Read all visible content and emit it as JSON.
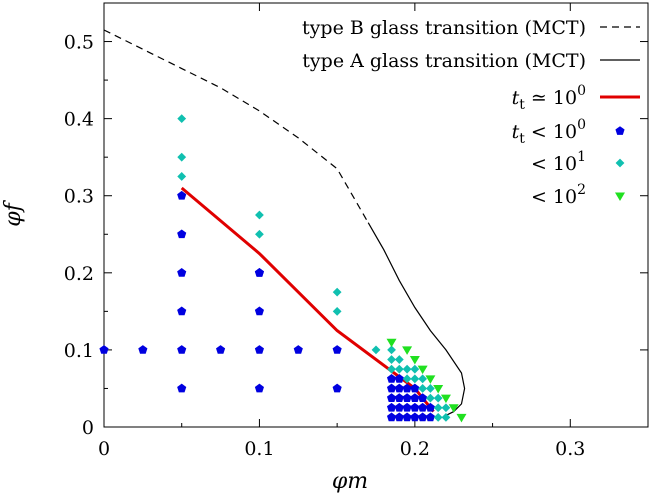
{
  "chart_data": {
    "type": "scatter",
    "xlabel": "φm",
    "ylabel": "φf",
    "xlim": [
      0,
      0.35
    ],
    "ylim": [
      0,
      0.55
    ],
    "x_ticks": [
      {
        "value": 0,
        "label": "0"
      },
      {
        "value": 0.1,
        "label": "0.1"
      },
      {
        "value": 0.2,
        "label": "0.2"
      },
      {
        "value": 0.3,
        "label": "0.3"
      }
    ],
    "y_ticks": [
      {
        "value": 0,
        "label": "0"
      },
      {
        "value": 0.1,
        "label": "0.1"
      },
      {
        "value": 0.2,
        "label": "0.2"
      },
      {
        "value": 0.3,
        "label": "0.3"
      },
      {
        "value": 0.4,
        "label": "0.4"
      },
      {
        "value": 0.5,
        "label": "0.5"
      }
    ],
    "grid": false,
    "legend_position": "top-right",
    "series": [
      {
        "name": "type B glass transition (MCT)",
        "style": "dashed-line",
        "color": "#000000",
        "points": [
          [
            0,
            0.515
          ],
          [
            0.025,
            0.49
          ],
          [
            0.05,
            0.465
          ],
          [
            0.075,
            0.44
          ],
          [
            0.1,
            0.41
          ],
          [
            0.125,
            0.375
          ],
          [
            0.15,
            0.335
          ],
          [
            0.17,
            0.265
          ]
        ]
      },
      {
        "name": "type A glass transition (MCT)",
        "style": "solid-line",
        "color": "#000000",
        "points": [
          [
            0.17,
            0.265
          ],
          [
            0.18,
            0.23
          ],
          [
            0.19,
            0.19
          ],
          [
            0.2,
            0.155
          ],
          [
            0.21,
            0.125
          ],
          [
            0.22,
            0.1
          ],
          [
            0.23,
            0.07
          ],
          [
            0.232,
            0.05
          ],
          [
            0.23,
            0.03
          ],
          [
            0.225,
            0.02
          ],
          [
            0.22,
            0.015
          ]
        ]
      },
      {
        "name": "t_t ≃ 10^0",
        "label_main": "tt ≃ 10",
        "label_sup": "0",
        "style": "thick-line",
        "color": "#e00000",
        "points": [
          [
            0.05,
            0.31
          ],
          [
            0.1,
            0.225
          ],
          [
            0.15,
            0.125
          ],
          [
            0.2,
            0.05
          ],
          [
            0.212,
            0.02
          ]
        ]
      },
      {
        "name": "t_t < 10^0",
        "label_main": "tt < 10",
        "label_sup": "0",
        "style": "pentagon",
        "color": "#0000e0",
        "points": [
          [
            0,
            0.1
          ],
          [
            0.025,
            0.1
          ],
          [
            0.05,
            0.1
          ],
          [
            0.075,
            0.1
          ],
          [
            0.1,
            0.1
          ],
          [
            0.125,
            0.1
          ],
          [
            0.15,
            0.1
          ],
          [
            0.05,
            0.05
          ],
          [
            0.1,
            0.05
          ],
          [
            0.15,
            0.05
          ],
          [
            0.05,
            0.15
          ],
          [
            0.1,
            0.15
          ],
          [
            0.05,
            0.2
          ],
          [
            0.1,
            0.2
          ],
          [
            0.05,
            0.25
          ],
          [
            0.05,
            0.3
          ],
          [
            0.1,
            0.2
          ],
          [
            0.185,
            0.0625
          ],
          [
            0.185,
            0.05
          ],
          [
            0.185,
            0.0375
          ],
          [
            0.185,
            0.025
          ],
          [
            0.185,
            0.0125
          ],
          [
            0.19,
            0.0625
          ],
          [
            0.19,
            0.05
          ],
          [
            0.19,
            0.0375
          ],
          [
            0.19,
            0.025
          ],
          [
            0.19,
            0.0125
          ],
          [
            0.195,
            0.05
          ],
          [
            0.195,
            0.0375
          ],
          [
            0.195,
            0.025
          ],
          [
            0.195,
            0.0125
          ],
          [
            0.2,
            0.05
          ],
          [
            0.2,
            0.0375
          ],
          [
            0.2,
            0.025
          ],
          [
            0.2,
            0.0125
          ],
          [
            0.205,
            0.0375
          ],
          [
            0.205,
            0.025
          ],
          [
            0.205,
            0.0125
          ],
          [
            0.21,
            0.025
          ],
          [
            0.21,
            0.0125
          ]
        ]
      },
      {
        "name": "< 10^1",
        "label_main": "< 10",
        "label_sup": "1",
        "style": "diamond",
        "color": "#10c0b0",
        "points": [
          [
            0.05,
            0.4
          ],
          [
            0.05,
            0.35
          ],
          [
            0.05,
            0.325
          ],
          [
            0.1,
            0.275
          ],
          [
            0.1,
            0.25
          ],
          [
            0.15,
            0.175
          ],
          [
            0.15,
            0.15
          ],
          [
            0.175,
            0.1
          ],
          [
            0.185,
            0.1
          ],
          [
            0.185,
            0.0875
          ],
          [
            0.185,
            0.075
          ],
          [
            0.19,
            0.0875
          ],
          [
            0.19,
            0.075
          ],
          [
            0.195,
            0.075
          ],
          [
            0.195,
            0.0625
          ],
          [
            0.2,
            0.075
          ],
          [
            0.2,
            0.0625
          ],
          [
            0.205,
            0.0625
          ],
          [
            0.205,
            0.05
          ],
          [
            0.21,
            0.05
          ],
          [
            0.21,
            0.0375
          ],
          [
            0.215,
            0.0375
          ],
          [
            0.215,
            0.025
          ],
          [
            0.215,
            0.0125
          ],
          [
            0.22,
            0.025
          ],
          [
            0.22,
            0.0125
          ]
        ]
      },
      {
        "name": "< 10^2",
        "label_main": "< 10",
        "label_sup": "2",
        "style": "triangle-down",
        "color": "#20e020",
        "points": [
          [
            0.185,
            0.11
          ],
          [
            0.195,
            0.1
          ],
          [
            0.2,
            0.0875
          ],
          [
            0.205,
            0.075
          ],
          [
            0.21,
            0.0625
          ],
          [
            0.215,
            0.05
          ],
          [
            0.22,
            0.0375
          ],
          [
            0.225,
            0.025
          ],
          [
            0.23,
            0.0125
          ]
        ]
      }
    ]
  }
}
